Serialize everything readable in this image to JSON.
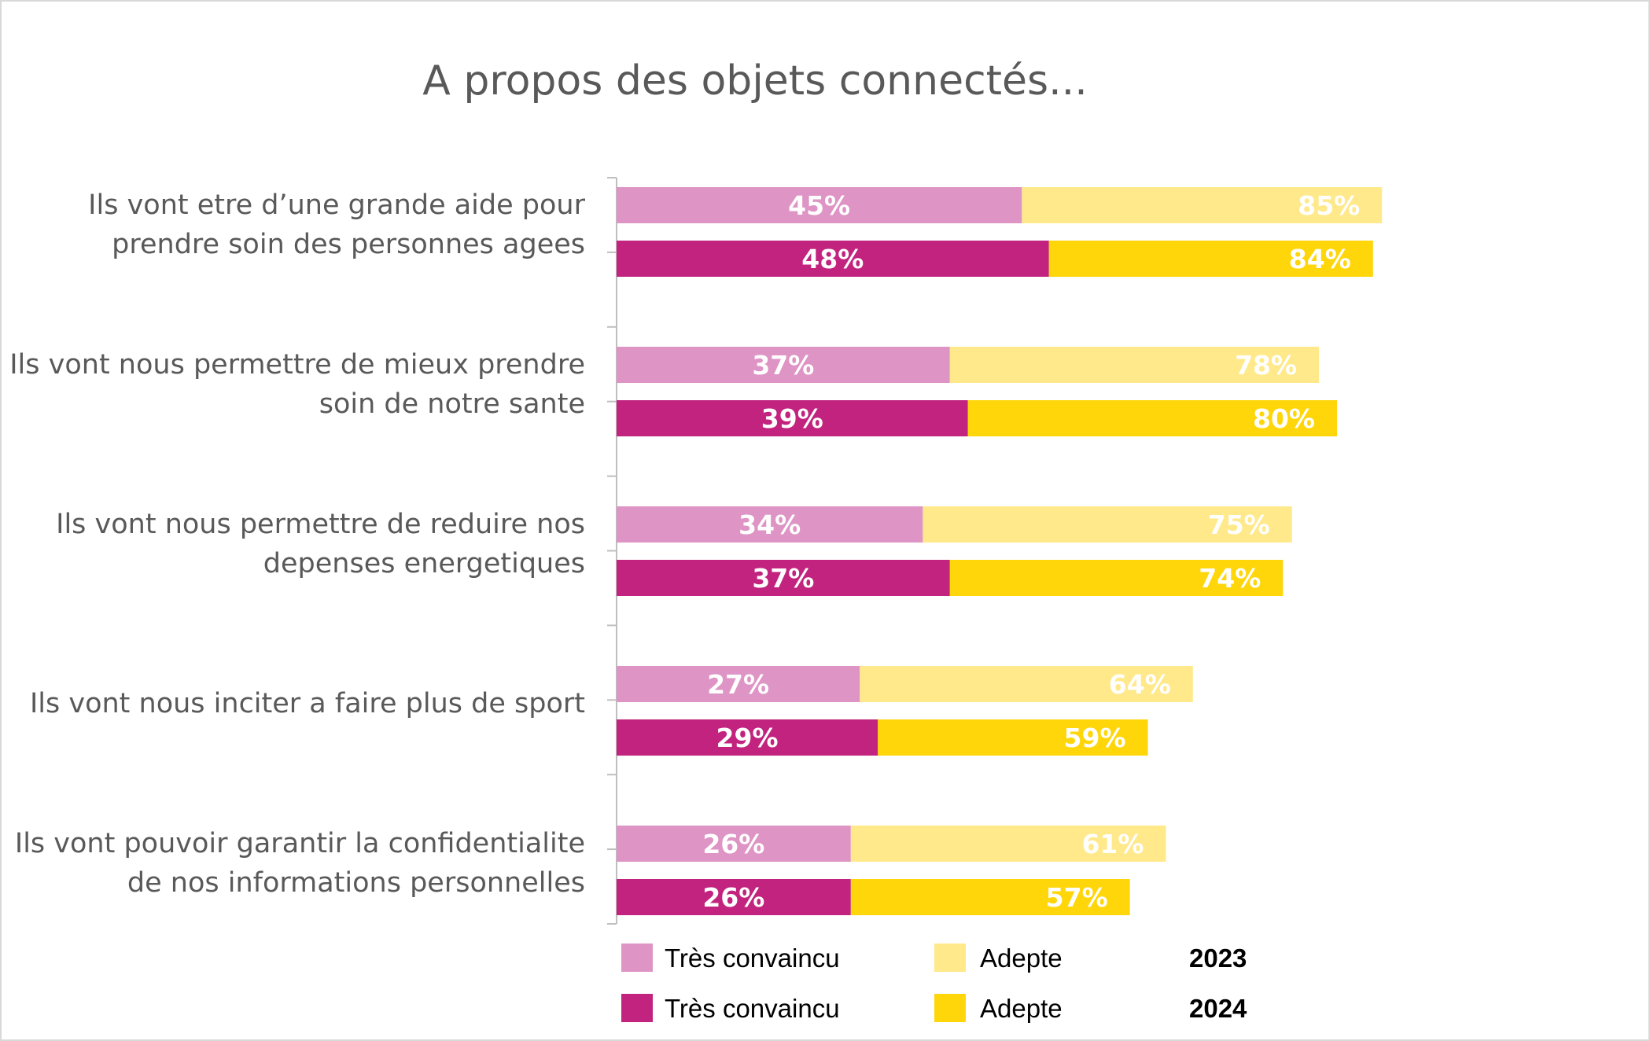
{
  "chart_data": {
    "type": "bar",
    "orientation": "horizontal",
    "stacking": "overlaid-cumulative",
    "title": "A propos des objets connectés...",
    "categories": [
      [
        "Ils vont etre d’une grande aide pour",
        "prendre soin des personnes agees"
      ],
      [
        "Ils vont nous permettre de mieux prendre",
        "soin de notre sante"
      ],
      [
        "Ils vont nous permettre de reduire nos",
        "depenses energetiques"
      ],
      [
        "Ils vont nous inciter a faire plus de sport"
      ],
      [
        "Ils vont pouvoir garantir la confidentialite",
        "de nos informations personnelles"
      ]
    ],
    "xlim": [
      0,
      100
    ],
    "grid": false,
    "years": [
      {
        "year": "2023",
        "tres_convaincu": [
          45,
          37,
          34,
          27,
          26
        ],
        "adepte": [
          85,
          78,
          75,
          64,
          61
        ],
        "tres_convaincu_labels": [
          "45%",
          "37%",
          "34%",
          "27%",
          "26%"
        ],
        "adepte_labels": [
          "85%",
          "78%",
          "75%",
          "64%",
          "61%"
        ],
        "colors": {
          "tres_convaincu": "#de94c4",
          "adepte": "#ffe98a"
        }
      },
      {
        "year": "2024",
        "tres_convaincu": [
          48,
          39,
          37,
          29,
          26
        ],
        "adepte": [
          84,
          80,
          74,
          59,
          57
        ],
        "tres_convaincu_labels": [
          "48%",
          "39%",
          "37%",
          "29%",
          "26%"
        ],
        "adepte_labels": [
          "84%",
          "80%",
          "74%",
          "59%",
          "57%"
        ],
        "colors": {
          "tres_convaincu": "#c1237e",
          "adepte": "#ffd60a"
        }
      }
    ],
    "legend": {
      "placement": "bottom",
      "rows": [
        {
          "tres_convaincu_label": "Très convaincu",
          "adepte_label": "Adepte",
          "year_label": "2023",
          "tres_convaincu_color": "#de94c4",
          "adepte_color": "#ffe98a"
        },
        {
          "tres_convaincu_label": "Très convaincu",
          "adepte_label": "Adepte",
          "year_label": "2024",
          "tres_convaincu_color": "#c1237e",
          "adepte_color": "#ffd60a"
        }
      ]
    },
    "axis_color": "#bfbfbf"
  }
}
